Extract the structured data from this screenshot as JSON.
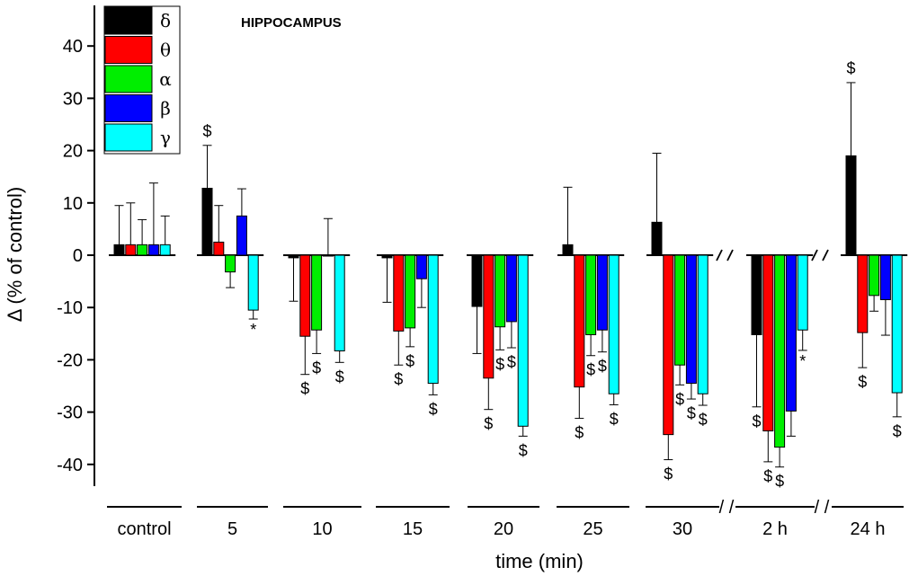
{
  "chart_data": {
    "type": "bar",
    "title": "HIPPOCAMPUS",
    "xlabel": "time (min)",
    "ylabel": "Δ (% of control)",
    "ylim": [
      -45,
      47
    ],
    "yticks": [
      40,
      30,
      20,
      10,
      0,
      -10,
      -20,
      -30,
      -40
    ],
    "grid": false,
    "legend_position": "top-left",
    "break_marker": "/ /",
    "categories": [
      "control",
      "5",
      "10",
      "15",
      "20",
      "25",
      "30",
      "2 h",
      "24 h"
    ],
    "series": [
      {
        "name": "δ",
        "color": "#000000",
        "values": [
          2,
          12.8,
          -0.5,
          -0.5,
          -9.8,
          2,
          6.3,
          -15.2,
          19
        ],
        "errors": [
          7.5,
          8.2,
          8.3,
          8.5,
          9.0,
          11.0,
          13.2,
          13.8,
          14.0
        ],
        "annotations": [
          "",
          "$",
          "",
          "",
          "",
          "",
          "",
          "$",
          "$"
        ]
      },
      {
        "name": "θ",
        "color": "#ff0000",
        "values": [
          2,
          2.5,
          -15.5,
          -14.5,
          -23.5,
          -25.2,
          -34.3,
          -33.6,
          -14.8
        ],
        "errors": [
          8.0,
          7.0,
          7.3,
          6.5,
          6.0,
          6.0,
          4.8,
          5.9,
          6.7
        ],
        "annotations": [
          "",
          "",
          "$",
          "$",
          "$",
          "$",
          "$",
          "$",
          "$"
        ]
      },
      {
        "name": "α",
        "color": "#00ee00",
        "values": [
          2,
          -3.2,
          -14.3,
          -13.9,
          -13.7,
          -15.2,
          -21.0,
          -36.7,
          -7.7
        ],
        "errors": [
          4.8,
          3.0,
          4.5,
          3.6,
          4.4,
          4.0,
          3.8,
          3.8,
          3.0
        ],
        "annotations": [
          "",
          "",
          "$",
          "$",
          "$",
          "$",
          "$",
          "$",
          ""
        ]
      },
      {
        "name": "β",
        "color": "#0000ff",
        "values": [
          2,
          7.5,
          0,
          -4.5,
          -12.7,
          -14.3,
          -24.5,
          -29.8,
          -8.5
        ],
        "errors": [
          11.8,
          5.2,
          7.0,
          5.5,
          5.0,
          4.2,
          3.0,
          4.8,
          6.8
        ],
        "annotations": [
          "",
          "",
          "",
          "",
          "$",
          "$",
          "$",
          "",
          ""
        ]
      },
      {
        "name": "γ",
        "color": "#00ffff",
        "values": [
          2,
          -10.5,
          -18.3,
          -24.5,
          -32.7,
          -26.5,
          -26.5,
          -14.3,
          -26.3
        ],
        "errors": [
          5.5,
          1.7,
          2.2,
          2.2,
          1.9,
          2.1,
          2.2,
          3.9,
          4.6
        ],
        "annotations": [
          "",
          "*",
          "$",
          "$",
          "$",
          "$",
          "$",
          "*",
          "$"
        ]
      }
    ]
  }
}
